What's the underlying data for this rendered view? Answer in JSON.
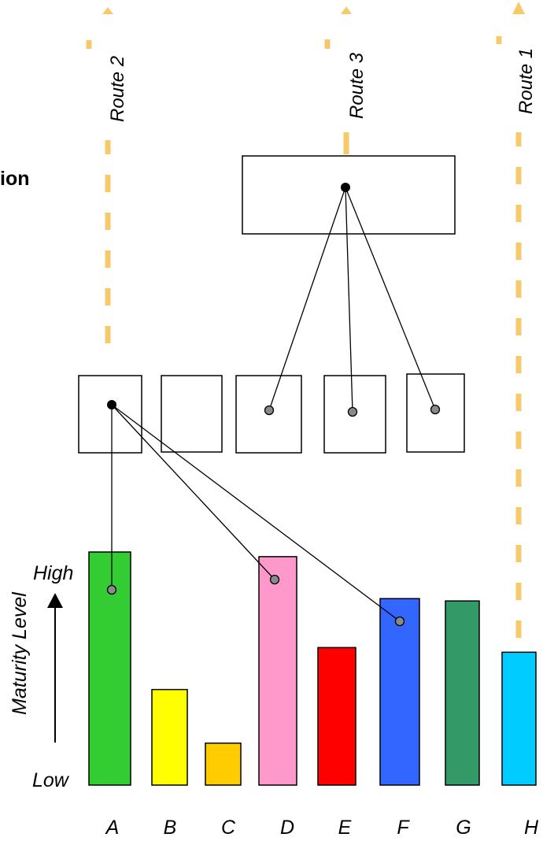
{
  "heading_fragment": "ion",
  "routes": [
    {
      "id": "route2",
      "label": "Route 2"
    },
    {
      "id": "route3",
      "label": "Route 3"
    },
    {
      "id": "route1",
      "label": "Route 1"
    }
  ],
  "axis": {
    "title": "Maturity Level",
    "high": "High",
    "low": "Low"
  },
  "colors": {
    "route": "#f7c96b",
    "A": "#33cc33",
    "B": "#ffff00",
    "C": "#ffcc00",
    "D": "#ff99cc",
    "E": "#ff0000",
    "F": "#3366ff",
    "G": "#339966",
    "H": "#00ccff"
  },
  "chart_data": {
    "type": "bar",
    "categories": [
      "A",
      "B",
      "C",
      "D",
      "E",
      "F",
      "G",
      "H"
    ],
    "values": [
      1.0,
      0.41,
      0.18,
      0.98,
      0.59,
      0.8,
      0.79,
      0.57
    ],
    "ylabel": "Maturity Level",
    "ylim": [
      0,
      1
    ],
    "y_tick_labels": [
      "Low",
      "High"
    ]
  }
}
